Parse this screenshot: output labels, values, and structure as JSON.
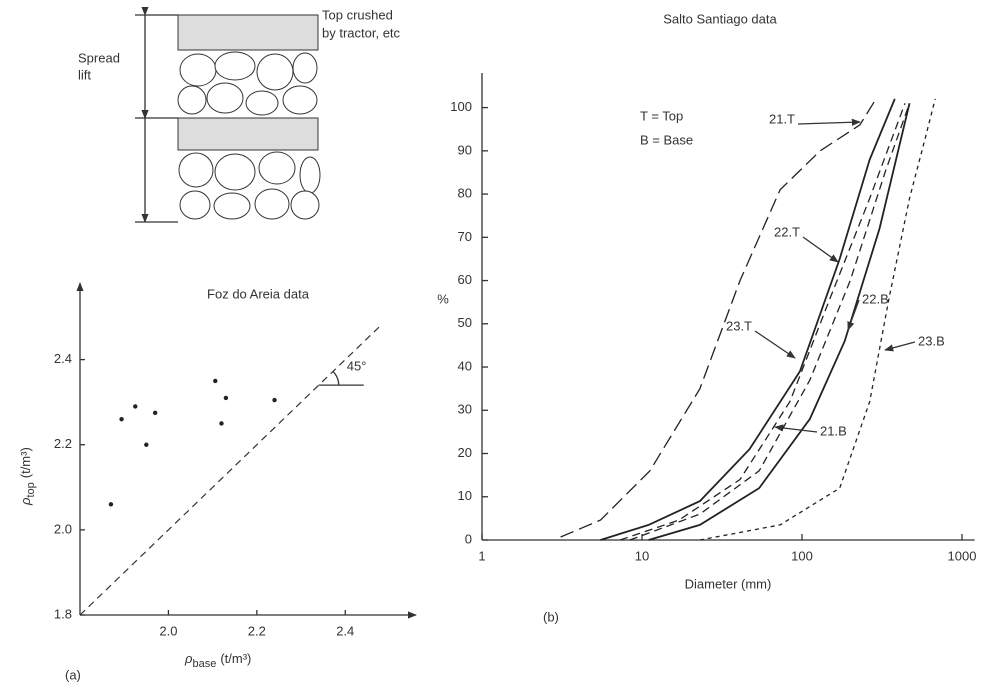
{
  "diagram": {
    "left_label": [
      "Spread",
      "lift"
    ],
    "right_label": [
      "Top crushed",
      "by tractor, etc"
    ]
  },
  "chart_data": [
    {
      "type": "scatter",
      "title": "Foz do Areia data",
      "panel_label": "(a)",
      "x_label": [
        "ρ",
        "base",
        "(t/m³)"
      ],
      "y_label": [
        "ρ",
        "top",
        "(t/m³)"
      ],
      "x": [
        1.87,
        1.894,
        1.925,
        1.95,
        1.97,
        2.106,
        2.12,
        2.13,
        2.24
      ],
      "values": [
        2.06,
        2.26,
        2.29,
        2.2,
        2.275,
        2.35,
        2.25,
        2.31,
        2.305
      ],
      "color": "#222",
      "xlim": [
        1.8,
        2.56
      ],
      "ylim": [
        1.8,
        2.58
      ],
      "xticks": [
        {
          "value": 2,
          "label": "2.0"
        },
        2.2,
        2.4
      ],
      "yticks": [
        {
          "value": 1.8,
          "label": "1.8"
        },
        {
          "value": 2,
          "label": "2.0"
        },
        2.2,
        2.4
      ],
      "diagonal": [
        1.8,
        2.48
      ],
      "annotation": "45°"
    },
    {
      "type": "line",
      "title": "Salto Santiago data",
      "panel_label": "(b)",
      "x_label": "Diameter (mm)",
      "y_label": "%",
      "notes": [
        "T = Top",
        "B = Base"
      ],
      "log_x": true,
      "xlim": [
        1,
        1200
      ],
      "ylim": [
        0,
        108
      ],
      "xticks": [
        1,
        10,
        100,
        1000
      ],
      "yticks": [
        0,
        10,
        20,
        30,
        40,
        50,
        60,
        70,
        80,
        90,
        100
      ],
      "series": [
        {
          "name": "21.T",
          "color": "#222",
          "dash": "long",
          "x": [
            3.1,
            5.5,
            11.2,
            23,
            41,
            73,
            130,
            230,
            290
          ],
          "values": [
            0.7,
            4.6,
            16,
            35,
            60,
            81,
            90,
            96,
            102
          ]
        },
        {
          "name": "22.T",
          "color": "#222",
          "dash": "solid",
          "x": [
            5.5,
            11,
            23,
            47,
            97,
            172,
            265,
            380
          ],
          "values": [
            0,
            3.5,
            9,
            21,
            39,
            65,
            88,
            102
          ]
        },
        {
          "name": "23.T",
          "color": "#222",
          "dash": "medium",
          "x": [
            7.3,
            17,
            41,
            84,
            150,
            265,
            440
          ],
          "values": [
            0,
            4.6,
            14,
            32,
            56,
            79,
            101
          ]
        },
        {
          "name": "21.B",
          "color": "#222",
          "dash": "solid",
          "x": [
            11,
            23,
            54,
            112,
            185,
            305,
            470
          ],
          "values": [
            0,
            3.5,
            12,
            28,
            46,
            72,
            101
          ]
        },
        {
          "name": "22.B",
          "color": "#222",
          "dash": "medium",
          "x": [
            8.4,
            23,
            54,
            112,
            200,
            330,
            470
          ],
          "values": [
            0,
            6,
            16,
            37,
            60,
            85,
            101
          ]
        },
        {
          "name": "23.B",
          "color": "#222",
          "dash": "short",
          "x": [
            23,
            73,
            172,
            265,
            350,
            470,
            590,
            680
          ],
          "values": [
            0,
            3.5,
            12,
            32,
            56,
            79,
            93,
            102
          ]
        }
      ]
    }
  ]
}
